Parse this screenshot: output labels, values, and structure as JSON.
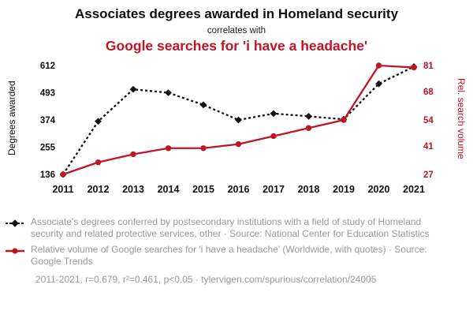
{
  "header": {
    "title": "Associates degrees awarded in Homeland security",
    "connector": "correlates with",
    "title2": "Google searches for 'i have a headache'"
  },
  "colors": {
    "accent": "#c01427",
    "ink": "#111111",
    "muted": "#999999"
  },
  "chart_data": {
    "type": "line",
    "title": "Associates degrees awarded in Homeland security correlates with Google searches for 'i have a headache'",
    "x": [
      "2011",
      "2012",
      "2013",
      "2014",
      "2015",
      "2016",
      "2017",
      "2018",
      "2019",
      "2020",
      "2021"
    ],
    "left_axis": {
      "label": "Degrees awarded",
      "ticks": [
        136,
        255,
        374,
        493,
        612
      ],
      "range": [
        136,
        612
      ]
    },
    "right_axis": {
      "label": "Rel. search volume",
      "ticks": [
        27,
        41,
        54,
        68,
        81
      ],
      "range": [
        27,
        81
      ]
    },
    "series": [
      {
        "name": "Associate's degrees awarded in Homeland security",
        "axis": "left",
        "color": "#111111",
        "marker": "diamond",
        "dash": true,
        "values": [
          136,
          368,
          508,
          493,
          440,
          374,
          402,
          390,
          377,
          532,
          607
        ]
      },
      {
        "name": "Google searches for 'i have a headache'",
        "axis": "right",
        "color": "#c01427",
        "marker": "circle",
        "dash": false,
        "values": [
          27,
          33,
          37,
          40,
          40,
          42,
          46,
          50,
          54,
          81,
          80
        ]
      }
    ],
    "legend_position": "bottom",
    "grid": false
  },
  "legend": {
    "items": [
      {
        "text": "Associate's degrees conferred by postsecondary institutions with a field of study of Homeland security and related protective services, other · Source: National Center for Education Statistics"
      },
      {
        "text": "Relative volume of Google searches for 'i have a headache' (Worldwide, with quotes) · Source: Google Trends"
      }
    ],
    "footer": "2011-2021, r=0.679, r²=0.461, p<0.05 · tylervigen.com/spurious/correlation/24005"
  }
}
